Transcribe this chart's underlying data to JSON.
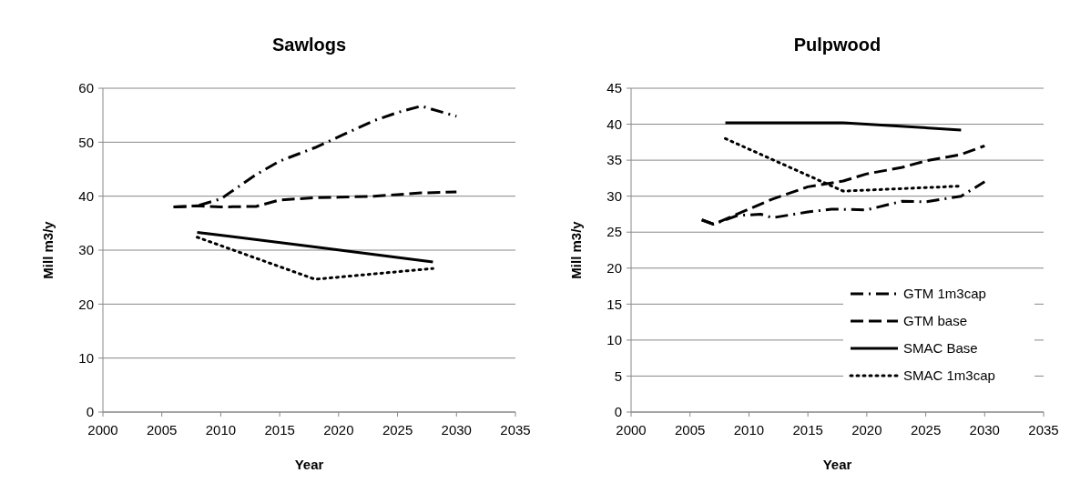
{
  "chart_data": [
    {
      "type": "line",
      "title": "Sawlogs",
      "xlabel": "Year",
      "ylabel": "Mill m3/y",
      "xlim": [
        2000,
        2035
      ],
      "xticks": [
        2000,
        2005,
        2010,
        2015,
        2020,
        2025,
        2030,
        2035
      ],
      "ylim": [
        0,
        60
      ],
      "yticks": [
        0,
        10,
        20,
        30,
        40,
        50,
        60
      ],
      "grid": "y",
      "legend": false,
      "series": [
        {
          "color": "#000000",
          "line_style": "dashdot",
          "x": [
            2006,
            2008,
            2010,
            2013,
            2015,
            2018,
            2020,
            2023,
            2025,
            2027,
            2030
          ],
          "values": [
            38,
            38.2,
            39.5,
            44,
            46.5,
            49,
            51,
            54,
            55.5,
            56.7,
            54.8
          ]
        },
        {
          "color": "#000000",
          "line_style": "dashed",
          "x": [
            2006,
            2008,
            2010,
            2013,
            2015,
            2018,
            2020,
            2023,
            2025,
            2027,
            2030
          ],
          "values": [
            38,
            38.2,
            38,
            38.1,
            39.3,
            39.7,
            39.8,
            40,
            40.3,
            40.6,
            40.8
          ]
        },
        {
          "color": "#000000",
          "line_style": "solid",
          "x": [
            2008,
            2018,
            2028
          ],
          "values": [
            33.3,
            30.6,
            27.8
          ]
        },
        {
          "color": "#000000",
          "line_style": "dotted",
          "x": [
            2008,
            2018,
            2028
          ],
          "values": [
            32.4,
            24.6,
            26.6
          ]
        }
      ]
    },
    {
      "type": "line",
      "title": "Pulpwood",
      "xlabel": "Year",
      "ylabel": "Mill m3/y",
      "xlim": [
        2000,
        2035
      ],
      "xticks": [
        2000,
        2005,
        2010,
        2015,
        2020,
        2025,
        2030,
        2035
      ],
      "ylim": [
        0,
        45
      ],
      "yticks": [
        0,
        5,
        10,
        15,
        20,
        25,
        30,
        35,
        40,
        45
      ],
      "grid": "y",
      "legend": "bottom right",
      "series": [
        {
          "name": "GTM 1m3cap",
          "color": "#000000",
          "line_style": "dashdot",
          "x": [
            2006,
            2007,
            2009,
            2011,
            2012,
            2015,
            2017,
            2020,
            2023,
            2025,
            2028,
            2030
          ],
          "values": [
            26.7,
            26.1,
            27.3,
            27.5,
            27,
            27.8,
            28.2,
            28.1,
            29.3,
            29.2,
            30,
            32
          ]
        },
        {
          "name": "GTM base",
          "color": "#000000",
          "line_style": "dashed",
          "x": [
            2006,
            2007,
            2009,
            2012,
            2015,
            2018,
            2020,
            2023,
            2025,
            2028,
            2030
          ],
          "values": [
            26.7,
            26.1,
            27.5,
            29.6,
            31.3,
            32.1,
            33.1,
            34,
            34.9,
            35.8,
            37
          ]
        },
        {
          "name": "SMAC Base",
          "color": "#000000",
          "line_style": "solid",
          "x": [
            2008,
            2018,
            2028
          ],
          "values": [
            40.2,
            40.2,
            39.2
          ]
        },
        {
          "name": "SMAC 1m3cap",
          "color": "#000000",
          "line_style": "dotted",
          "x": [
            2008,
            2018,
            2028
          ],
          "values": [
            38,
            30.7,
            31.4
          ]
        }
      ]
    }
  ]
}
